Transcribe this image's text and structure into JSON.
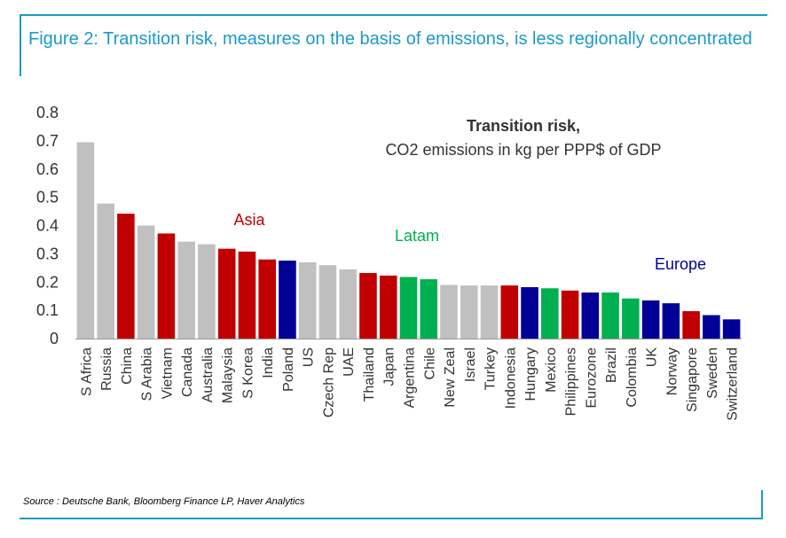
{
  "figure": {
    "title": "Figure 2: Transition risk, measures on the basis of emissions, is less regionally concentrated",
    "source": "Source : Deutsche Bank, Bloomberg Finance LP, Haver Analytics"
  },
  "chart_data": {
    "type": "bar",
    "title": "Transition risk,",
    "subtitle": "CO2 emissions in kg per PPP$ of GDP",
    "xlabel": "",
    "ylabel": "",
    "ylim": [
      0,
      0.8
    ],
    "yticks": [
      "0",
      "0.1",
      "0.2",
      "0.3",
      "0.4",
      "0.5",
      "0.6",
      "0.7",
      "0.8"
    ],
    "grid": false,
    "categories": [
      "S Africa",
      "Russia",
      "China",
      "S Arabia",
      "Vietnam",
      "Canada",
      "Australia",
      "Malaysia",
      "S Korea",
      "India",
      "Poland",
      "US",
      "Czech Rep",
      "UAE",
      "Thailand",
      "Japan",
      "Argentina",
      "Chile",
      "New Zeal",
      "Israel",
      "Turkey",
      "Indonesia",
      "Hungary",
      "Mexico",
      "Philippines",
      "Eurozone",
      "Brazil",
      "Colombia",
      "UK",
      "Norway",
      "Singapore",
      "Sweden",
      "Switzerland"
    ],
    "values": [
      0.695,
      0.478,
      0.442,
      0.4,
      0.372,
      0.343,
      0.334,
      0.318,
      0.308,
      0.28,
      0.276,
      0.27,
      0.26,
      0.245,
      0.232,
      0.223,
      0.218,
      0.21,
      0.19,
      0.188,
      0.188,
      0.188,
      0.182,
      0.178,
      0.17,
      0.163,
      0.163,
      0.142,
      0.135,
      0.125,
      0.097,
      0.083,
      0.068
    ],
    "groups": [
      "other",
      "other",
      "Asia",
      "other",
      "Asia",
      "other",
      "other",
      "Asia",
      "Asia",
      "Asia",
      "Europe",
      "other",
      "other",
      "other",
      "Asia",
      "Asia",
      "Latam",
      "Latam",
      "other",
      "other",
      "other",
      "Asia",
      "Europe",
      "Latam",
      "Asia",
      "Europe",
      "Latam",
      "Latam",
      "Europe",
      "Europe",
      "Asia",
      "Europe",
      "Europe"
    ],
    "annotations": [
      {
        "text": "Asia",
        "group": "Asia"
      },
      {
        "text": "Latam",
        "group": "Latam"
      },
      {
        "text": "Europe",
        "group": "Europe"
      }
    ],
    "colors": {
      "other": "#c0c0c0",
      "Asia": "#c00000",
      "Latam": "#00b050",
      "Europe": "#000096"
    }
  }
}
